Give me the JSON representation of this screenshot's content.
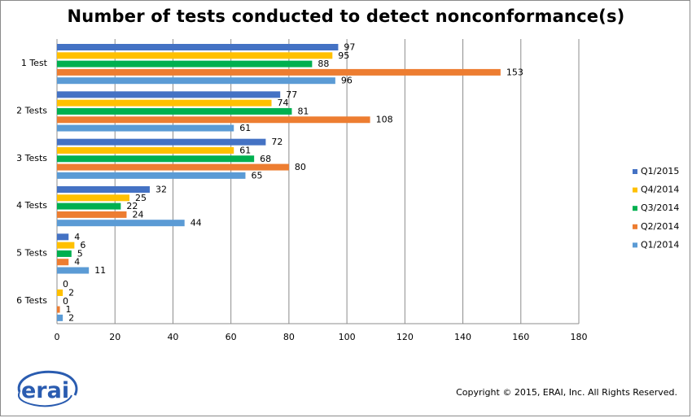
{
  "title": "Number of tests conducted to detect nonconformance(s)",
  "copyright": "Copyright © 2015, ERAI, Inc.  All Rights Reserved.",
  "logo_text": "erai",
  "chart_data": {
    "type": "bar",
    "orientation": "horizontal",
    "title": "Number of tests conducted to detect nonconformance(s)",
    "categories": [
      "1 Test",
      "2 Tests",
      "3 Tests",
      "4 Tests",
      "5 Tests",
      "6 Tests"
    ],
    "series": [
      {
        "name": "Q1/2015",
        "color": "#4472C4",
        "values": [
          97,
          77,
          72,
          32,
          4,
          0
        ]
      },
      {
        "name": "Q4/2014",
        "color": "#FFC000",
        "values": [
          95,
          74,
          61,
          25,
          6,
          2
        ]
      },
      {
        "name": "Q3/2014",
        "color": "#00B050",
        "values": [
          88,
          81,
          68,
          22,
          5,
          0
        ]
      },
      {
        "name": "Q2/2014",
        "color": "#ED7D31",
        "values": [
          153,
          108,
          80,
          24,
          4,
          1
        ]
      },
      {
        "name": "Q1/2014",
        "color": "#5B9BD5",
        "values": [
          96,
          61,
          65,
          44,
          11,
          2
        ]
      }
    ],
    "xlim": [
      0,
      180
    ],
    "xticks": [
      0,
      20,
      40,
      60,
      80,
      100,
      120,
      140,
      160,
      180
    ],
    "grid": true,
    "legend_position": "right",
    "data_labels": true
  }
}
